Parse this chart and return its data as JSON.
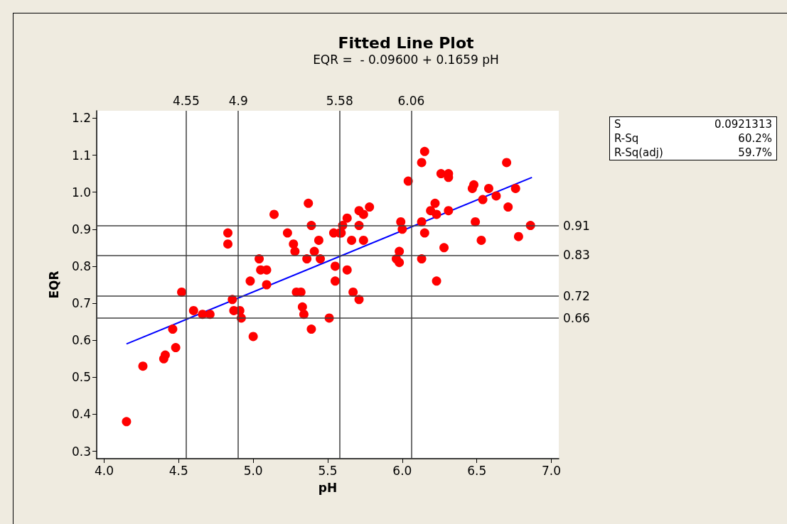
{
  "chart_data": {
    "type": "scatter",
    "title": "Fitted Line Plot",
    "subtitle": "EQR =  - 0.09600 + 0.1659 pH",
    "xlabel": "pH",
    "ylabel": "EQR",
    "xlim": [
      3.95,
      7.05
    ],
    "xticks": [
      {
        "value": 4,
        "label": "4.0"
      },
      4.5,
      {
        "value": 5,
        "label": "5.0"
      },
      5.5,
      {
        "value": 6,
        "label": "6.0"
      },
      6.5,
      {
        "value": 7,
        "label": "7.0"
      }
    ],
    "ylim": [
      0.28,
      1.22
    ],
    "yticks": [
      0.3,
      0.4,
      0.5,
      0.6,
      0.7,
      0.8,
      0.9,
      {
        "value": 1,
        "label": "1.0"
      },
      1.1,
      1.2
    ],
    "grid": false,
    "marker": "circle",
    "series": [
      {
        "color": "#ff0000",
        "x": [
          4.15,
          4.26,
          4.4,
          4.41,
          4.48,
          4.46,
          4.52,
          4.6,
          4.66,
          4.71,
          4.83,
          4.83,
          4.86,
          4.87,
          4.91,
          4.92,
          5.0,
          4.98,
          5.04,
          5.05,
          5.09,
          5.09,
          5.14,
          5.23,
          5.27,
          5.28,
          5.29,
          5.32,
          5.33,
          5.34,
          5.36,
          5.37,
          5.39,
          5.39,
          5.41,
          5.44,
          5.45,
          5.51,
          5.54,
          5.55,
          5.55,
          5.59,
          5.58,
          5.6,
          5.63,
          5.63,
          5.66,
          5.67,
          5.71,
          5.71,
          5.71,
          5.74,
          5.74,
          5.78,
          5.96,
          5.98,
          5.98,
          5.99,
          6.0,
          6.04,
          6.13,
          6.15,
          6.13,
          6.13,
          6.15,
          6.19,
          6.22,
          6.23,
          6.23,
          6.26,
          6.31,
          6.31,
          6.31,
          6.28,
          6.47,
          6.48,
          6.49,
          6.53,
          6.54,
          6.58,
          6.63,
          6.7,
          6.71,
          6.76,
          6.78,
          6.86
        ],
        "values": [
          0.38,
          0.53,
          0.55,
          0.56,
          0.58,
          0.63,
          0.73,
          0.68,
          0.67,
          0.67,
          0.89,
          0.86,
          0.71,
          0.68,
          0.68,
          0.66,
          0.61,
          0.76,
          0.82,
          0.79,
          0.79,
          0.75,
          0.94,
          0.89,
          0.86,
          0.84,
          0.73,
          0.73,
          0.69,
          0.67,
          0.82,
          0.97,
          0.91,
          0.63,
          0.84,
          0.87,
          0.82,
          0.66,
          0.89,
          0.8,
          0.76,
          0.89,
          0.89,
          0.91,
          0.93,
          0.79,
          0.87,
          0.73,
          0.95,
          0.91,
          0.71,
          0.94,
          0.87,
          0.96,
          0.82,
          0.84,
          0.81,
          0.92,
          0.9,
          1.03,
          1.08,
          1.11,
          0.82,
          0.92,
          0.89,
          0.95,
          0.97,
          0.76,
          0.94,
          1.05,
          1.05,
          1.04,
          0.95,
          0.85,
          1.01,
          1.02,
          0.92,
          0.87,
          0.98,
          1.01,
          0.99,
          1.08,
          0.96,
          1.01,
          0.88,
          0.91
        ]
      },
      {
        "type": "line",
        "color": "#0000ff",
        "marker": "none",
        "line_style": "solid",
        "x": [
          4.15,
          6.87
        ],
        "values": [
          0.59,
          1.04
        ]
      }
    ],
    "ref_lines": [
      {
        "axis": "x",
        "value": 4.55,
        "label": "4.55",
        "color": "#404040"
      },
      {
        "axis": "x",
        "value": 4.9,
        "label": "4.9",
        "color": "#404040"
      },
      {
        "axis": "x",
        "value": 5.58,
        "label": "5.58",
        "color": "#404040"
      },
      {
        "axis": "x",
        "value": 6.06,
        "label": "6.06",
        "color": "#404040"
      },
      {
        "axis": "y",
        "value": 0.91,
        "label": "0.91",
        "color": "#404040"
      },
      {
        "axis": "y",
        "value": 0.83,
        "label": "0.83",
        "color": "#404040"
      },
      {
        "axis": "y",
        "value": 0.72,
        "label": "0.72",
        "color": "#404040"
      },
      {
        "axis": "y",
        "value": 0.66,
        "label": "0.66",
        "color": "#404040"
      }
    ],
    "annotations": [
      "S",
      "0.0921313",
      "R-Sq",
      "60.2%",
      "R-Sq(adj)",
      "59.7%"
    ]
  }
}
